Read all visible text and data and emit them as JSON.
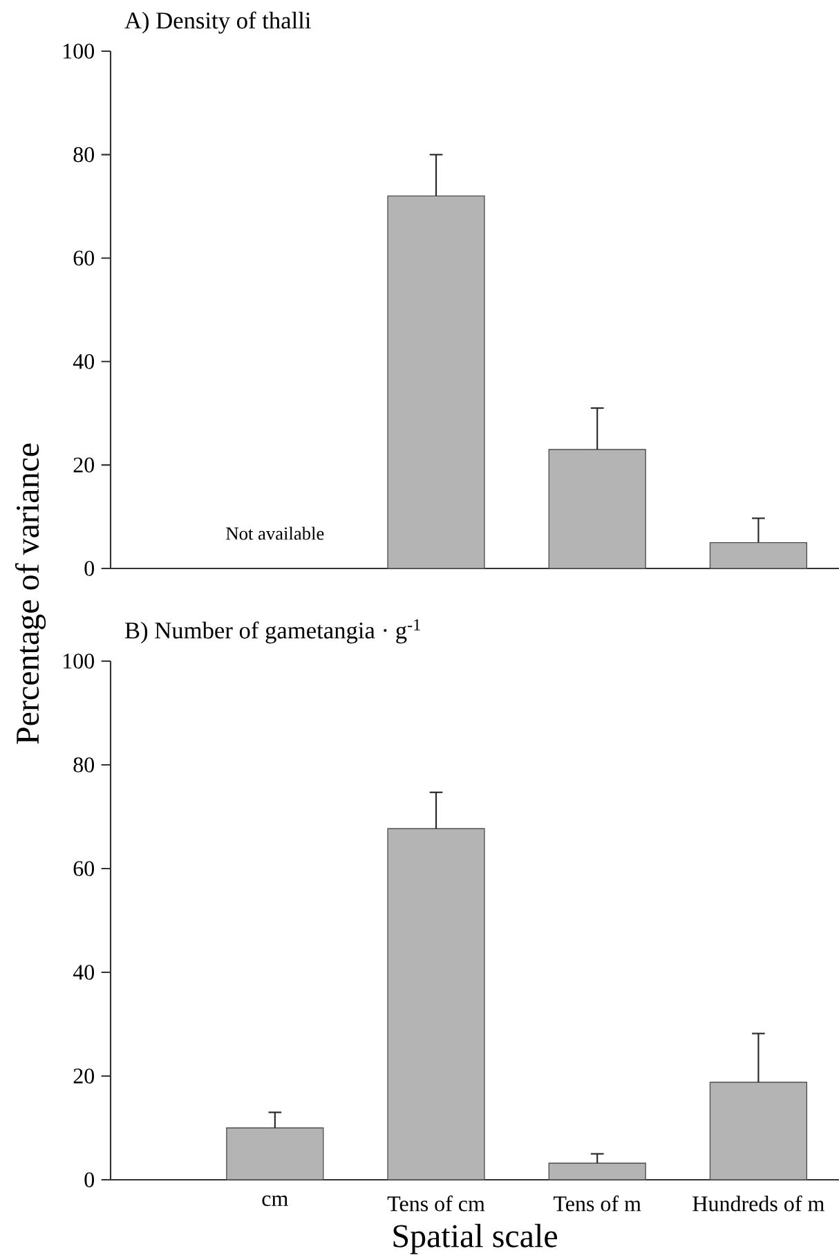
{
  "chart_data": [
    {
      "type": "bar",
      "title": "A) Density of thalli",
      "categories": [
        null,
        null,
        null,
        null
      ],
      "values": [
        null,
        72,
        23,
        5
      ],
      "errors": [
        null,
        8,
        8,
        4.7
      ],
      "color": "#b4b4b4",
      "ylim": [
        0,
        100
      ],
      "yticks": [
        0,
        20,
        40,
        60,
        80,
        100
      ],
      "annotations": [
        "Not available"
      ]
    },
    {
      "type": "bar",
      "title": "B) Number of gametangia · g$^{-1}$",
      "xlabel": "Spatial scale",
      "ylabel": "Percentage of variance",
      "categories": [
        "cm",
        "Tens of cm",
        "Tens of m",
        "Hundreds of m"
      ],
      "values": [
        10,
        67.7,
        3.2,
        18.8
      ],
      "errors": [
        3,
        7,
        1.8,
        9.4
      ],
      "color": "#b4b4b4",
      "ylim": [
        0,
        100
      ],
      "yticks": [
        0,
        20,
        40,
        60,
        80,
        100
      ]
    }
  ]
}
